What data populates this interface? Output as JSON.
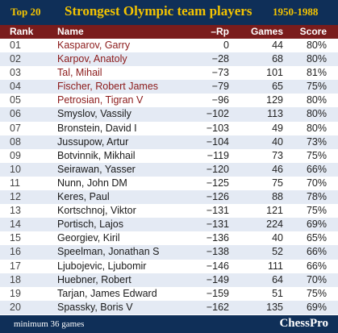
{
  "title": {
    "badge": "Top 20",
    "main": "Strongest Olympic team players",
    "years": "1950-1988"
  },
  "columns": {
    "rank": "Rank",
    "name": "Name",
    "rp": "–Rp",
    "games": "Games",
    "score": "Score"
  },
  "rows": [
    {
      "rank": "01",
      "name": "Kasparov, Garry",
      "rp": "0",
      "games": "44",
      "score": "80%",
      "highlight": true
    },
    {
      "rank": "02",
      "name": "Karpov, Anatoly",
      "rp": "−28",
      "games": "68",
      "score": "80%",
      "highlight": true
    },
    {
      "rank": "03",
      "name": "Tal, Mihail",
      "rp": "−73",
      "games": "101",
      "score": "81%",
      "highlight": true
    },
    {
      "rank": "04",
      "name": "Fischer, Robert James",
      "rp": "−79",
      "games": "65",
      "score": "75%",
      "highlight": true
    },
    {
      "rank": "05",
      "name": "Petrosian, Tigran V",
      "rp": "−96",
      "games": "129",
      "score": "80%",
      "highlight": true
    },
    {
      "rank": "06",
      "name": "Smyslov, Vassily",
      "rp": "−102",
      "games": "113",
      "score": "80%",
      "highlight": false
    },
    {
      "rank": "07",
      "name": "Bronstein, David I",
      "rp": "−103",
      "games": "49",
      "score": "80%",
      "highlight": false
    },
    {
      "rank": "08",
      "name": "Jussupow, Artur",
      "rp": "−104",
      "games": "40",
      "score": "73%",
      "highlight": false
    },
    {
      "rank": "09",
      "name": "Botvinnik, Mikhail",
      "rp": "−119",
      "games": "73",
      "score": "75%",
      "highlight": false
    },
    {
      "rank": "10",
      "name": "Seirawan, Yasser",
      "rp": "−120",
      "games": "46",
      "score": "66%",
      "highlight": false
    },
    {
      "rank": "11",
      "name": "Nunn, John DM",
      "rp": "−125",
      "games": "75",
      "score": "70%",
      "highlight": false
    },
    {
      "rank": "12",
      "name": "Keres, Paul",
      "rp": "−126",
      "games": "88",
      "score": "78%",
      "highlight": false
    },
    {
      "rank": "13",
      "name": "Kortschnoj, Viktor",
      "rp": "−131",
      "games": "121",
      "score": "75%",
      "highlight": false
    },
    {
      "rank": "14",
      "name": "Portisch, Lajos",
      "rp": "−131",
      "games": "224",
      "score": "69%",
      "highlight": false
    },
    {
      "rank": "15",
      "name": "Georgiev, Kiril",
      "rp": "−136",
      "games": "40",
      "score": "65%",
      "highlight": false
    },
    {
      "rank": "16",
      "name": "Speelman, Jonathan S",
      "rp": "−138",
      "games": "52",
      "score": "66%",
      "highlight": false
    },
    {
      "rank": "17",
      "name": "Ljubojevic, Ljubomir",
      "rp": "−146",
      "games": "111",
      "score": "66%",
      "highlight": false
    },
    {
      "rank": "18",
      "name": "Huebner, Robert",
      "rp": "−149",
      "games": "64",
      "score": "70%",
      "highlight": false
    },
    {
      "rank": "19",
      "name": "Tarjan, James Edward",
      "rp": "−159",
      "games": "51",
      "score": "75%",
      "highlight": false
    },
    {
      "rank": "20",
      "name": "Spassky, Boris V",
      "rp": "−162",
      "games": "135",
      "score": "69%",
      "highlight": false
    }
  ],
  "footer": {
    "note": "minimum 36 games",
    "brand": "ChessPro"
  },
  "colors": {
    "title_bg": "#0f2f58",
    "title_text": "#f4c400",
    "header_bg": "#7a1c1c",
    "row_alt": "#e4eaf4",
    "top_name": "#8b1a1a"
  }
}
